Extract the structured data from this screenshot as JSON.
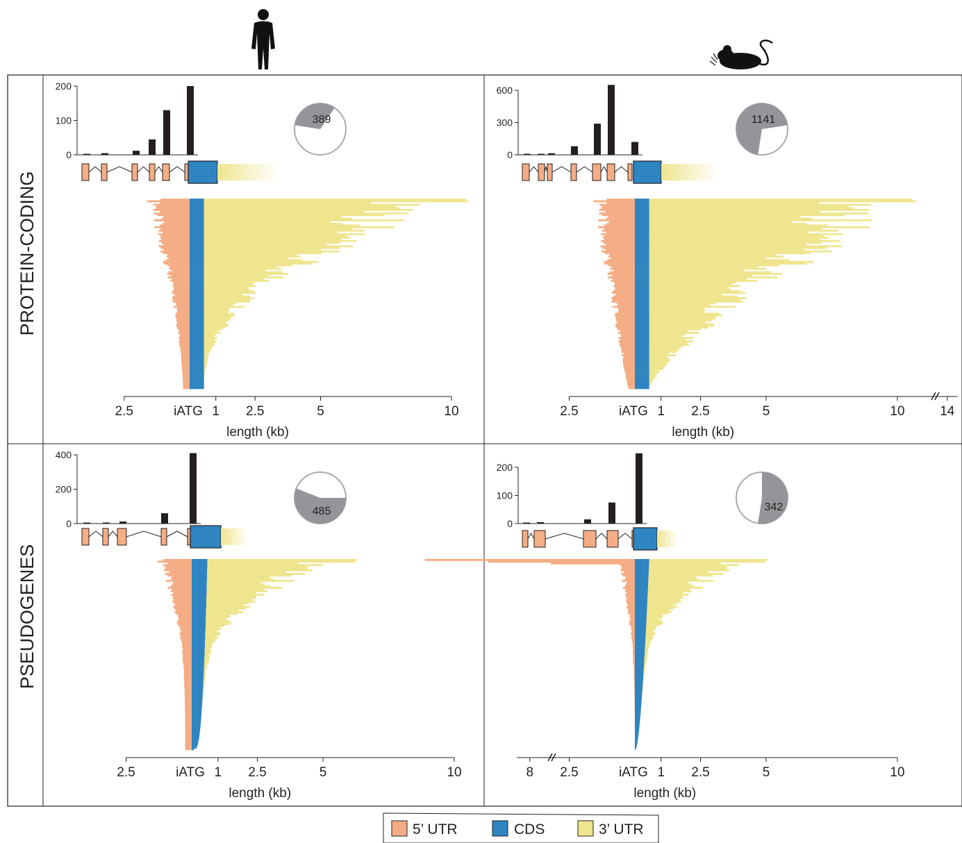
{
  "rows": [
    {
      "label": "PROTEIN-CODING"
    },
    {
      "label": "PSEUDOGENES"
    }
  ],
  "species": [
    {
      "icon": "human-icon"
    },
    {
      "icon": "mouse-icon"
    }
  ],
  "colors": {
    "utr5": "#f4ad84",
    "cds": "#2f85c1",
    "utr3": "#efe58f",
    "bar": "#231f20",
    "pie_fill": "#939598",
    "pie_border": "#a7a9ac",
    "axis": "#231f20"
  },
  "legend": {
    "items": [
      {
        "label": "5’ UTR",
        "color": "#f4ad84"
      },
      {
        "label": "CDS",
        "color": "#2f85c1"
      },
      {
        "label": "3’ UTR",
        "color": "#efe58f"
      }
    ]
  },
  "chart_data": [
    {
      "type": "bar",
      "panel": "human protein-coding",
      "ylim": [
        0,
        200
      ],
      "yticks": [
        0,
        100,
        200
      ],
      "values": [
        3,
        5,
        0,
        12,
        45,
        130,
        200
      ],
      "pie": {
        "count": "389",
        "fraction": 0.2
      },
      "gene_model": {
        "exons5": 7,
        "has_utr3": true
      },
      "profile": {
        "utr5_max_kb": 2.3,
        "cds_kb": 0.55,
        "utr3_max_kb": 10,
        "shape": 2.2
      },
      "axis": {
        "ticks": [
          "2.5",
          "iATG",
          "1",
          "2.5",
          "5",
          "10"
        ],
        "xlabel": "length (kb)",
        "break": false
      }
    },
    {
      "type": "bar",
      "panel": "mouse protein-coding",
      "ylim": [
        0,
        600
      ],
      "yticks": [
        0,
        300,
        600
      ],
      "values": [
        5,
        8,
        15,
        0,
        80,
        290,
        650,
        120
      ],
      "pie": {
        "count": "1141",
        "fraction": 0.7
      },
      "gene_model": {
        "exons5": 7,
        "has_utr3": true
      },
      "profile": {
        "utr5_max_kb": 2.2,
        "cds_kb": 0.55,
        "utr3_max_kb": 10,
        "shape": 1.3
      },
      "axis": {
        "ticks": [
          "2.5",
          "iATG",
          "1",
          "2.5",
          "5",
          "10",
          "14"
        ],
        "xlabel": "length (kb)",
        "break": true
      }
    },
    {
      "type": "bar",
      "panel": "human pseudogenes",
      "ylim": [
        0,
        400
      ],
      "yticks": [
        0,
        200,
        400
      ],
      "values": [
        2,
        5,
        12,
        0,
        0,
        60,
        0,
        410
      ],
      "pie": {
        "count": "485",
        "fraction": 0.55
      },
      "gene_model": {
        "exons5": 4,
        "has_utr3": true
      },
      "profile": {
        "utr5_max_kb": 1.8,
        "cds_kb": 0.6,
        "utr3_max_kb": 5.7,
        "shape": 4.5
      },
      "axis": {
        "ticks": [
          "2.5",
          "iATG",
          "1",
          "2.5",
          "5",
          "10"
        ],
        "xlabel": "length (kb)",
        "break": false
      }
    },
    {
      "type": "bar",
      "panel": "mouse pseudogenes",
      "ylim": [
        0,
        200
      ],
      "yticks": [
        0,
        100,
        200
      ],
      "values": [
        2,
        5,
        0,
        0,
        15,
        75,
        0,
        250
      ],
      "pie": {
        "count": "342",
        "fraction": 0.25
      },
      "gene_model": {
        "exons5": 4,
        "has_utr3": true
      },
      "profile": {
        "utr5_max_kb": 8,
        "cds_kb": 0.55,
        "utr3_max_kb": 4.5,
        "shape": 5
      },
      "axis": {
        "ticks": [
          "8",
          "2.5",
          "iATG",
          "1",
          "2.5",
          "5",
          "10"
        ],
        "xlabel": "length (kb)",
        "break": true
      }
    }
  ]
}
